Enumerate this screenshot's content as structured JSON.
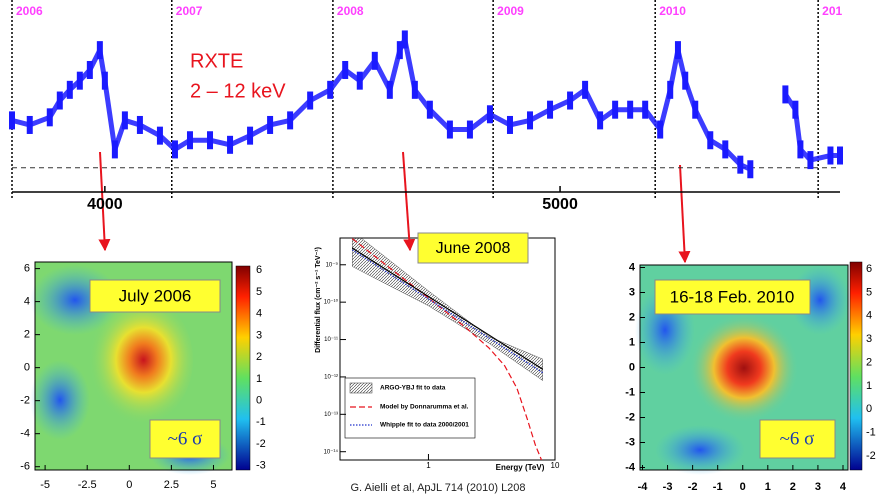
{
  "light_curve": {
    "type": "line",
    "label_lines": [
      "RXTE",
      "2 – 12 keV"
    ],
    "color": "#1a1aff",
    "label_color": "#e8141e",
    "x": [
      3796,
      3835,
      3879,
      3901,
      3923,
      3945,
      3967,
      3989,
      4000,
      4022,
      4044,
      4077,
      4121,
      4154,
      4187,
      4231,
      4275,
      4319,
      4363,
      4407,
      4451,
      4495,
      4528,
      4560,
      4593,
      4626,
      4648,
      4659,
      4681,
      4714,
      4758,
      4802,
      4846,
      4890,
      4934,
      4978,
      5022,
      5055,
      5088,
      5121,
      5154,
      5187,
      5220,
      5242,
      5259,
      5275,
      5297,
      5330,
      5363,
      5396,
      5418,
      5456,
      5495,
      5517,
      5528,
      5550,
      5594,
      5615
    ],
    "values": [
      3.1,
      2.8,
      3.3,
      4.4,
      5.1,
      5.7,
      6.4,
      7.7,
      5.7,
      1.2,
      3.1,
      2.8,
      2.1,
      1.2,
      1.8,
      1.8,
      1.5,
      2.1,
      2.8,
      3.1,
      4.4,
      5.1,
      6.4,
      5.7,
      7.0,
      5.1,
      7.7,
      8.4,
      5.1,
      3.8,
      2.5,
      2.5,
      3.5,
      2.8,
      3.1,
      3.8,
      4.4,
      5.1,
      3.1,
      3.8,
      3.8,
      3.8,
      2.5,
      5.1,
      7.7,
      5.7,
      3.8,
      1.8,
      1.2,
      0.2,
      -0.1,
      null,
      4.8,
      3.8,
      1.2,
      0.5,
      0.8,
      0.8
    ],
    "xlim": [
      3796,
      5615
    ],
    "ylim": [
      -1,
      10
    ],
    "xticks": [
      4000,
      5000
    ],
    "baseline": 0,
    "year_marks": [
      {
        "value": 3796,
        "label": "2006"
      },
      {
        "value": 4147,
        "label": "2007"
      },
      {
        "value": 4501,
        "label": "2008"
      },
      {
        "value": 4853,
        "label": "2009"
      },
      {
        "value": 5209,
        "label": "2010"
      },
      {
        "value": 5567,
        "label": "201"
      }
    ]
  },
  "maps": [
    {
      "title": "July 2006",
      "annotation": "~6 σ",
      "xlim": [
        -5.6,
        6.1
      ],
      "ylim": [
        -6.2,
        6.4
      ],
      "xticks": [
        -5,
        -2.5,
        0,
        2.5,
        5
      ],
      "yticks": [
        6,
        4,
        2,
        0,
        -2,
        -4,
        -6
      ],
      "colorbar": {
        "lim": [
          -3.2,
          6.2
        ],
        "ticks": [
          6,
          5,
          4,
          3,
          2,
          1,
          0,
          -1,
          -2,
          -3
        ]
      }
    },
    {
      "title": "16-18 Feb. 2010",
      "annotation": "~6 σ",
      "xlim": [
        -4.1,
        4.2
      ],
      "ylim": [
        -4.1,
        4.1
      ],
      "xticks": [
        -4,
        -3,
        -2,
        -1,
        0,
        1,
        2,
        3,
        4
      ],
      "yticks": [
        4,
        3,
        2,
        1,
        0,
        -1,
        -2,
        -3,
        -4
      ],
      "colorbar": {
        "lim": [
          -2.6,
          6.3
        ],
        "ticks": [
          6,
          5,
          4,
          3,
          2,
          1,
          0,
          -1,
          -2
        ]
      }
    }
  ],
  "spectrum": {
    "type": "line",
    "title": "June 2008",
    "xlabel": "Energy (TeV)",
    "ylabel": "Differential flux (cm⁻² s⁻¹ TeV⁻¹)",
    "log_x": true,
    "log_y": true,
    "xlim": [
      0.2,
      10
    ],
    "ylim": [
      6e-15,
      5.2e-09
    ],
    "xticks": [
      1,
      10
    ],
    "yticks": [
      {
        "value": 1e-09,
        "label": "10⁻⁹"
      },
      {
        "value": 1e-10,
        "label": "10⁻¹⁰"
      },
      {
        "value": 1e-11,
        "label": "10⁻¹¹"
      },
      {
        "value": 1e-12,
        "label": "10⁻¹²"
      },
      {
        "value": 1e-13,
        "label": "10⁻¹³"
      },
      {
        "value": 1e-14,
        "label": "10⁻¹⁴"
      }
    ],
    "band": {
      "name": "ARGO-YBJ fit to data",
      "color": "#555555",
      "x": [
        0.25,
        1,
        3,
        8
      ],
      "lower": [
        9e-10,
        8e-11,
        8e-12,
        8e-13
      ],
      "upper": [
        8e-09,
        2e-10,
        1.2e-11,
        3e-12
      ]
    },
    "series": [
      {
        "name": "Model by Donnarumma et al.",
        "color": "#e8141e",
        "x": [
          0.25,
          0.5,
          1,
          2,
          3,
          4,
          5,
          6,
          7,
          8
        ],
        "values": [
          5e-09,
          8e-10,
          1.3e-10,
          2e-11,
          6e-12,
          2e-12,
          5e-13,
          8e-14,
          1.5e-14,
          5e-15
        ]
      },
      {
        "name": "Whipple fit to data 2000/2001",
        "color": "#2233cc",
        "x": [
          0.25,
          8
        ],
        "values": [
          2.5e-09,
          1.3e-12
        ]
      },
      {
        "name": "ARGO-YBJ fit to data",
        "color": "#000000",
        "x": [
          0.25,
          8
        ],
        "values": [
          2.8e-09,
          1.6e-12
        ]
      }
    ]
  },
  "citation": "G. Aielli et al, ApJL 714 (2010) L208"
}
